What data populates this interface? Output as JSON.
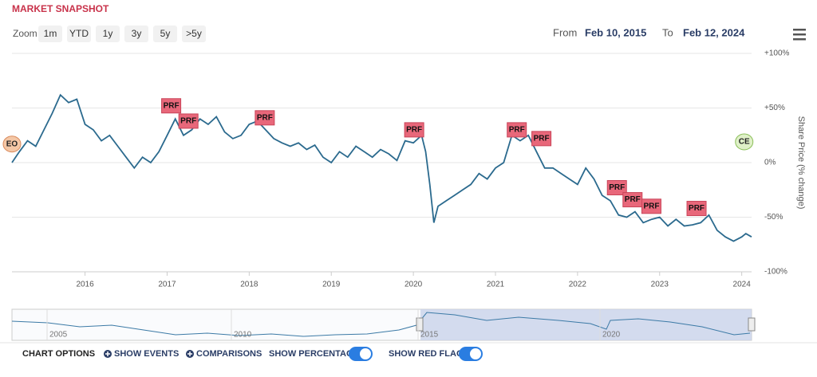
{
  "header": {
    "title": "MARKET SNAPSHOT",
    "zoom_label": "Zoom",
    "zoom_buttons": [
      "1m",
      "YTD",
      "1y",
      "3y",
      "5y",
      ">5y"
    ],
    "from_label": "From",
    "from_date": "Feb 10, 2015",
    "to_label": "To",
    "to_date": "Feb 12, 2024"
  },
  "chart_data": {
    "type": "line",
    "y_axis_label": "Share Price (% change)",
    "x": [
      2015.11,
      2015.2,
      2015.3,
      2015.4,
      2015.5,
      2015.6,
      2015.7,
      2015.8,
      2015.9,
      2016.0,
      2016.1,
      2016.2,
      2016.3,
      2016.4,
      2016.5,
      2016.6,
      2016.7,
      2016.8,
      2016.9,
      2017.0,
      2017.1,
      2017.2,
      2017.3,
      2017.4,
      2017.5,
      2017.6,
      2017.7,
      2017.8,
      2017.9,
      2018.0,
      2018.1,
      2018.2,
      2018.3,
      2018.4,
      2018.5,
      2018.6,
      2018.7,
      2018.8,
      2018.9,
      2019.0,
      2019.1,
      2019.2,
      2019.3,
      2019.4,
      2019.5,
      2019.6,
      2019.7,
      2019.8,
      2019.9,
      2020.0,
      2020.1,
      2020.15,
      2020.2,
      2020.25,
      2020.3,
      2020.4,
      2020.5,
      2020.6,
      2020.7,
      2020.8,
      2020.9,
      2021.0,
      2021.1,
      2021.2,
      2021.3,
      2021.4,
      2021.5,
      2021.6,
      2021.7,
      2021.8,
      2021.9,
      2022.0,
      2022.1,
      2022.2,
      2022.3,
      2022.4,
      2022.5,
      2022.6,
      2022.7,
      2022.8,
      2022.9,
      2023.0,
      2023.1,
      2023.2,
      2023.3,
      2023.4,
      2023.5,
      2023.6,
      2023.7,
      2023.8,
      2023.9,
      2024.0,
      2024.05,
      2024.12
    ],
    "series": [
      {
        "color": "#2b6a8e",
        "values": [
          0,
          10,
          20,
          15,
          30,
          45,
          62,
          55,
          58,
          35,
          30,
          20,
          25,
          15,
          5,
          -5,
          5,
          0,
          10,
          25,
          40,
          25,
          30,
          40,
          35,
          42,
          28,
          22,
          25,
          35,
          38,
          30,
          22,
          18,
          15,
          18,
          12,
          16,
          5,
          0,
          10,
          5,
          15,
          10,
          5,
          12,
          8,
          2,
          20,
          18,
          25,
          10,
          -20,
          -55,
          -40,
          -35,
          -30,
          -25,
          -20,
          -10,
          -15,
          -5,
          0,
          25,
          20,
          25,
          10,
          -5,
          -5,
          -10,
          -15,
          -20,
          -5,
          -15,
          -30,
          -35,
          -48,
          -50,
          -45,
          -55,
          -52,
          -50,
          -58,
          -52,
          -58,
          -57,
          -55,
          -48,
          -62,
          -68,
          -72,
          -68,
          -65,
          -68
        ]
      }
    ],
    "xlim": [
      2015.11,
      2024.12
    ],
    "xticks": [
      2016,
      2017,
      2018,
      2019,
      2020,
      2021,
      2022,
      2023,
      2024
    ],
    "ylim": [
      -100,
      100
    ],
    "yticks": [
      {
        "value": 100,
        "label": "+100%"
      },
      {
        "value": 50,
        "label": "+50%"
      },
      {
        "value": 0,
        "label": "0%"
      },
      {
        "value": -50,
        "label": "-50%"
      },
      {
        "value": -100,
        "label": "-100%"
      }
    ],
    "grid": true,
    "flags": [
      {
        "text": "PRF",
        "x": 2017.04,
        "y": 52
      },
      {
        "text": "PRF",
        "x": 2017.25,
        "y": 38
      },
      {
        "text": "PRF",
        "x": 2018.18,
        "y": 41
      },
      {
        "text": "PRF",
        "x": 2020.0,
        "y": 30
      },
      {
        "text": "PRF",
        "x": 2021.25,
        "y": 30
      },
      {
        "text": "PRF",
        "x": 2021.55,
        "y": 22
      },
      {
        "text": "PRF",
        "x": 2022.47,
        "y": -23
      },
      {
        "text": "PRF",
        "x": 2022.66,
        "y": -34
      },
      {
        "text": "PRF",
        "x": 2022.89,
        "y": -40
      },
      {
        "text": "PRF",
        "x": 2023.44,
        "y": -42
      }
    ],
    "events": [
      {
        "text": "EO",
        "x": 2015.11,
        "y": 17
      },
      {
        "text": "CE",
        "x": 2024.03,
        "y": 19
      }
    ]
  },
  "navigator": {
    "labels": [
      "2005",
      "2010",
      "2015",
      "2020"
    ]
  },
  "options": {
    "title": "CHART OPTIONS",
    "show_events": "SHOW EVENTS",
    "comparisons": "COMPARISONS",
    "show_percentage": "SHOW PERCENTAGE",
    "show_red_flags": "SHOW RED FLAGS"
  }
}
